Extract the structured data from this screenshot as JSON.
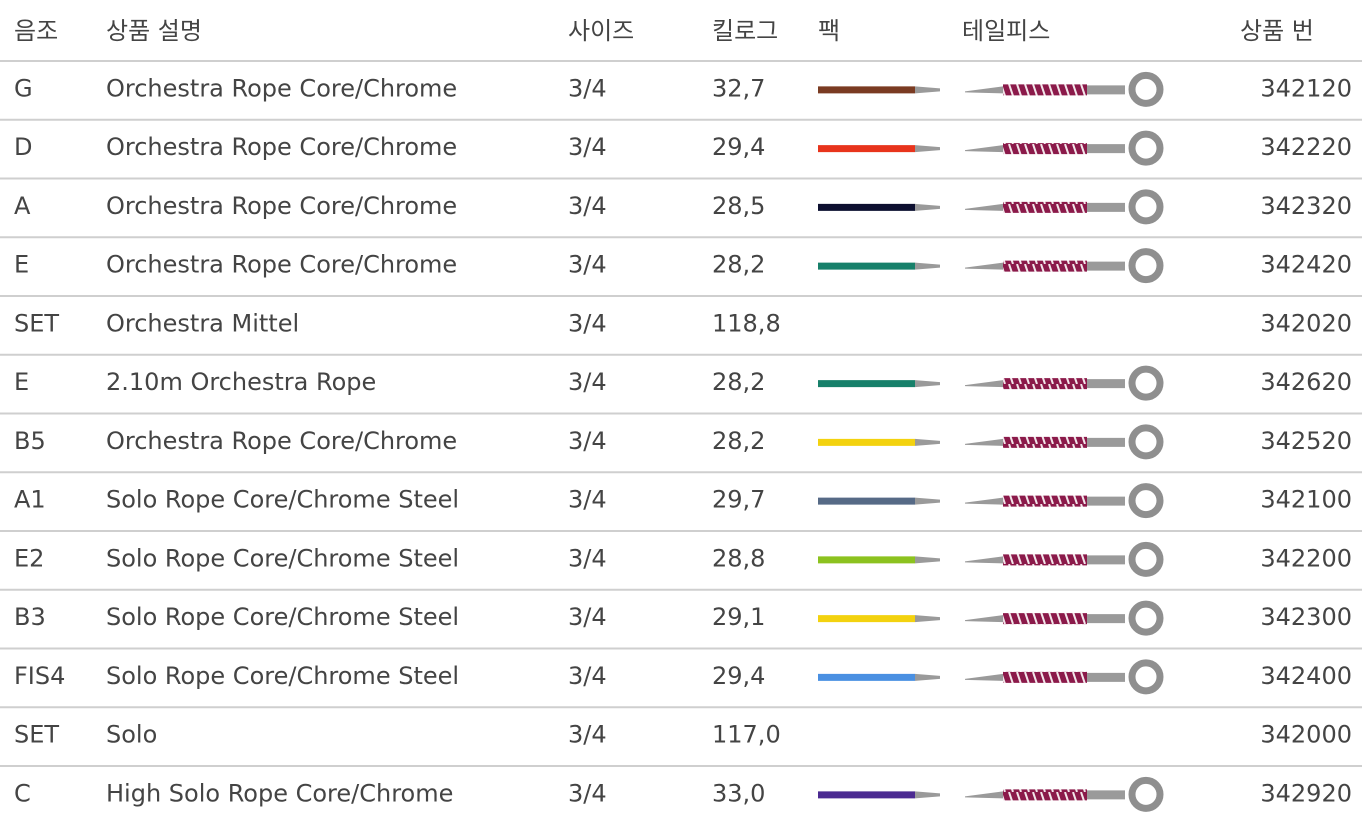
{
  "table": {
    "header": [
      "음조",
      "상품 설명",
      "사이즈",
      "킬로그",
      "팩",
      "테일피스",
      "상품 번"
    ],
    "rows": [
      {
        "note": "G",
        "description": "Orchestra Rope Core/Chrome",
        "size": "3/4",
        "kilogram": "32,7",
        "pack_color": "#7a3b22",
        "product_number": "342120"
      },
      {
        "note": "D",
        "description": "Orchestra Rope Core/Chrome",
        "size": "3/4",
        "kilogram": "29,4",
        "pack_color": "#e8341c",
        "product_number": "342220"
      },
      {
        "note": "A",
        "description": "Orchestra Rope Core/Chrome",
        "size": "3/4",
        "kilogram": "28,5",
        "pack_color": "#0d1030",
        "product_number": "342320"
      },
      {
        "note": "E",
        "description": "Orchestra Rope Core/Chrome",
        "size": "3/4",
        "kilogram": "28,2",
        "pack_color": "#17806a",
        "product_number": "342420"
      },
      {
        "note": "SET",
        "description": "Orchestra Mittel",
        "size": "3/4",
        "kilogram": "118,8",
        "pack_color": null,
        "product_number": "342020"
      },
      {
        "note": "E",
        "description": "2.10m Orchestra Rope",
        "size": "3/4",
        "kilogram": "28,2",
        "pack_color": "#17806a",
        "product_number": "342620"
      },
      {
        "note": "B5",
        "description": "Orchestra Rope Core/Chrome",
        "size": "3/4",
        "kilogram": "28,2",
        "pack_color": "#f3d20f",
        "product_number": "342520"
      },
      {
        "note": "A1",
        "description": "Solo Rope Core/Chrome Steel",
        "size": "3/4",
        "kilogram": "29,7",
        "pack_color": "#566a86",
        "product_number": "342100"
      },
      {
        "note": "E2",
        "description": "Solo Rope Core/Chrome Steel",
        "size": "3/4",
        "kilogram": "28,8",
        "pack_color": "#8cc21f",
        "product_number": "342200"
      },
      {
        "note": "B3",
        "description": "Solo Rope Core/Chrome Steel",
        "size": "3/4",
        "kilogram": "29,1",
        "pack_color": "#f3d20f",
        "product_number": "342300"
      },
      {
        "note": "FIS4",
        "description": "Solo Rope Core/Chrome Steel",
        "size": "3/4",
        "kilogram": "29,4",
        "pack_color": "#4a90e2",
        "product_number": "342400"
      },
      {
        "note": "SET",
        "description": "Solo",
        "size": "3/4",
        "kilogram": "117,0",
        "pack_color": null,
        "product_number": "342000"
      },
      {
        "note": "C",
        "description": "High Solo Rope Core/Chrome",
        "size": "3/4",
        "kilogram": "33,0",
        "pack_color": "#4b2a91",
        "product_number": "342920"
      }
    ]
  }
}
